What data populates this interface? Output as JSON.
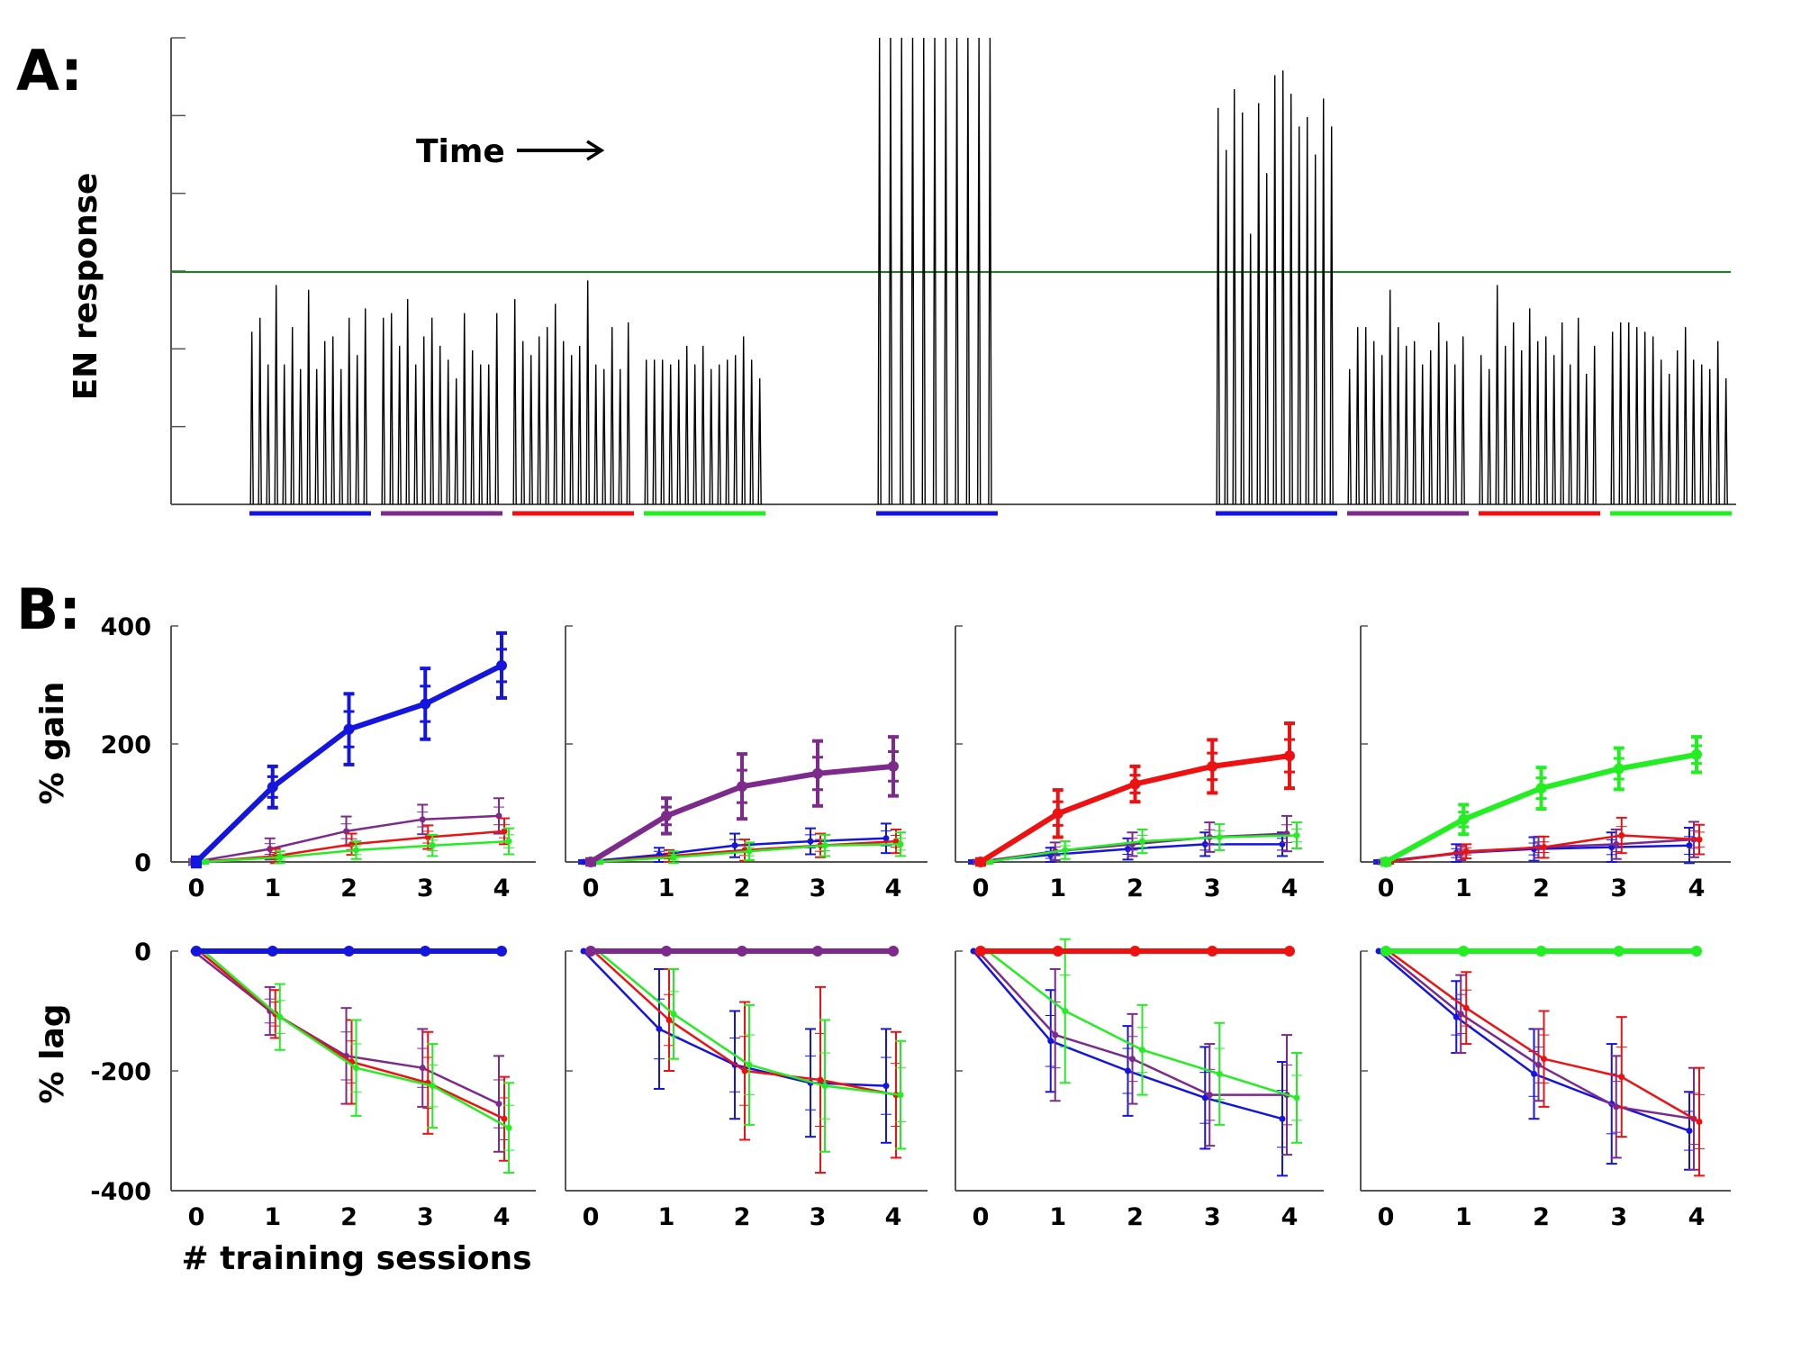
{
  "panel_a_label": "A:",
  "panel_b_label": "B:",
  "panel_a_ylabel": "EN response",
  "time_label": "Time",
  "gain_ylabel": "% gain",
  "lag_ylabel": "% lag",
  "xlabel": "# training sessions",
  "colors": {
    "blue": "#1515e0",
    "purple": "#7d2a8c",
    "red": "#ee1111",
    "green": "#22ee22",
    "threshold": "#118811",
    "axis": "#555555",
    "trace": "#000000"
  },
  "chart_data": [
    {
      "type": "line",
      "panel": "A",
      "ylabel": "EN response",
      "annotation": "Time",
      "threshold_line": true,
      "segments": [
        {
          "group": 1,
          "color": "blue",
          "peaks": [
            0.37,
            0.4,
            0.3,
            0.47,
            0.3,
            0.38,
            0.29,
            0.46,
            0.29,
            0.35,
            0.36,
            0.29,
            0.4,
            0.32,
            0.42
          ]
        },
        {
          "group": 1,
          "color": "purple",
          "peaks": [
            0.4,
            0.41,
            0.34,
            0.44,
            0.3,
            0.36,
            0.4,
            0.34,
            0.31,
            0.27,
            0.41,
            0.33,
            0.3,
            0.3,
            0.41
          ]
        },
        {
          "group": 1,
          "color": "red",
          "peaks": [
            0.44,
            0.35,
            0.32,
            0.36,
            0.38,
            0.43,
            0.35,
            0.32,
            0.34,
            0.48,
            0.3,
            0.29,
            0.38,
            0.29,
            0.39
          ]
        },
        {
          "group": 1,
          "color": "green",
          "peaks": [
            0.31,
            0.31,
            0.31,
            0.3,
            0.31,
            0.34,
            0.3,
            0.34,
            0.29,
            0.3,
            0.31,
            0.32,
            0.36,
            0.31,
            0.27
          ]
        },
        {
          "group": 2,
          "color": "blue",
          "peaks": [
            1.0,
            1.0,
            1.0,
            1.0,
            1.0,
            1.0,
            1.0,
            1.0,
            1.0,
            1.0,
            1.0
          ]
        },
        {
          "group": 3,
          "color": "blue",
          "peaks": [
            0.85,
            0.76,
            0.89,
            0.84,
            0.58,
            0.86,
            0.71,
            0.92,
            0.93,
            0.88,
            0.81,
            0.83,
            0.75,
            0.87,
            0.81
          ]
        },
        {
          "group": 3,
          "color": "purple",
          "peaks": [
            0.29,
            0.38,
            0.38,
            0.35,
            0.32,
            0.46,
            0.38,
            0.34,
            0.35,
            0.3,
            0.33,
            0.39,
            0.35,
            0.3,
            0.36
          ]
        },
        {
          "group": 3,
          "color": "red",
          "peaks": [
            0.32,
            0.29,
            0.47,
            0.34,
            0.39,
            0.33,
            0.42,
            0.35,
            0.36,
            0.32,
            0.39,
            0.3,
            0.4,
            0.28,
            0.34
          ]
        },
        {
          "group": 3,
          "color": "green",
          "peaks": [
            0.37,
            0.39,
            0.39,
            0.38,
            0.37,
            0.36,
            0.31,
            0.28,
            0.33,
            0.38,
            0.31,
            0.3,
            0.29,
            0.35,
            0.27
          ]
        }
      ]
    },
    {
      "type": "line",
      "panel": "B",
      "metric": "gain",
      "trained": "blue",
      "x": [
        0,
        1,
        2,
        3,
        4
      ],
      "ylim": [
        0,
        400
      ],
      "yticks": [
        0,
        200,
        400
      ],
      "series": [
        {
          "color": "blue",
          "trained": true,
          "values": [
            0,
            127,
            225,
            268,
            333
          ],
          "errors": [
            8,
            35,
            60,
            60,
            55
          ]
        },
        {
          "color": "purple",
          "values": [
            0,
            22,
            52,
            72,
            78
          ],
          "errors": [
            5,
            18,
            25,
            25,
            30
          ]
        },
        {
          "color": "red",
          "values": [
            0,
            10,
            30,
            42,
            52
          ],
          "errors": [
            3,
            12,
            18,
            20,
            22
          ]
        },
        {
          "color": "green",
          "values": [
            0,
            8,
            20,
            28,
            35
          ],
          "errors": [
            3,
            10,
            15,
            18,
            22
          ]
        }
      ]
    },
    {
      "type": "line",
      "panel": "B",
      "metric": "gain",
      "trained": "purple",
      "x": [
        0,
        1,
        2,
        3,
        4
      ],
      "ylim": [
        0,
        400
      ],
      "yticks": [
        0,
        200,
        400
      ],
      "series": [
        {
          "color": "purple",
          "trained": true,
          "values": [
            0,
            78,
            128,
            150,
            162
          ],
          "errors": [
            5,
            30,
            55,
            55,
            50
          ]
        },
        {
          "color": "blue",
          "values": [
            0,
            12,
            28,
            35,
            40
          ],
          "errors": [
            3,
            12,
            20,
            22,
            25
          ]
        },
        {
          "color": "red",
          "values": [
            0,
            10,
            20,
            28,
            35
          ],
          "errors": [
            3,
            10,
            18,
            20,
            20
          ]
        },
        {
          "color": "green",
          "values": [
            0,
            8,
            18,
            28,
            30
          ],
          "errors": [
            3,
            10,
            15,
            18,
            20
          ]
        }
      ]
    },
    {
      "type": "line",
      "panel": "B",
      "metric": "gain",
      "trained": "red",
      "x": [
        0,
        1,
        2,
        3,
        4
      ],
      "ylim": [
        0,
        400
      ],
      "yticks": [
        0,
        200,
        400
      ],
      "series": [
        {
          "color": "red",
          "trained": true,
          "values": [
            0,
            82,
            132,
            162,
            180
          ],
          "errors": [
            5,
            40,
            30,
            45,
            55
          ]
        },
        {
          "color": "blue",
          "values": [
            0,
            12,
            22,
            30,
            30
          ],
          "errors": [
            3,
            12,
            18,
            20,
            20
          ]
        },
        {
          "color": "purple",
          "values": [
            0,
            18,
            30,
            42,
            48
          ],
          "errors": [
            3,
            15,
            20,
            25,
            30
          ]
        },
        {
          "color": "green",
          "values": [
            0,
            20,
            35,
            42,
            45
          ],
          "errors": [
            3,
            15,
            20,
            22,
            22
          ]
        }
      ]
    },
    {
      "type": "line",
      "panel": "B",
      "metric": "gain",
      "trained": "green",
      "x": [
        0,
        1,
        2,
        3,
        4
      ],
      "ylim": [
        0,
        400
      ],
      "yticks": [
        0,
        200,
        400
      ],
      "series": [
        {
          "color": "green",
          "trained": true,
          "values": [
            0,
            72,
            125,
            158,
            182
          ],
          "errors": [
            5,
            25,
            35,
            35,
            30
          ]
        },
        {
          "color": "blue",
          "values": [
            0,
            15,
            22,
            25,
            28
          ],
          "errors": [
            3,
            15,
            20,
            25,
            30
          ]
        },
        {
          "color": "purple",
          "values": [
            0,
            15,
            25,
            30,
            38
          ],
          "errors": [
            3,
            12,
            18,
            25,
            30
          ]
        },
        {
          "color": "red",
          "values": [
            0,
            18,
            25,
            45,
            38
          ],
          "errors": [
            3,
            12,
            18,
            30,
            25
          ]
        }
      ]
    },
    {
      "type": "line",
      "panel": "B",
      "metric": "lag",
      "trained": "blue",
      "x": [
        0,
        1,
        2,
        3,
        4
      ],
      "ylim": [
        -400,
        0
      ],
      "yticks": [
        -400,
        -200,
        0
      ],
      "series": [
        {
          "color": "blue",
          "trained": true,
          "values": [
            0,
            0,
            0,
            0,
            0
          ],
          "errors": [
            0,
            0,
            0,
            0,
            0
          ]
        },
        {
          "color": "purple",
          "values": [
            0,
            -100,
            -175,
            -195,
            -255
          ],
          "errors": [
            0,
            40,
            80,
            65,
            80
          ]
        },
        {
          "color": "red",
          "values": [
            0,
            -105,
            -185,
            -220,
            -280
          ],
          "errors": [
            0,
            40,
            70,
            85,
            70
          ]
        },
        {
          "color": "green",
          "values": [
            0,
            -110,
            -195,
            -225,
            -295
          ],
          "errors": [
            0,
            55,
            80,
            70,
            75
          ]
        }
      ]
    },
    {
      "type": "line",
      "panel": "B",
      "metric": "lag",
      "trained": "purple",
      "x": [
        0,
        1,
        2,
        3,
        4
      ],
      "ylim": [
        -400,
        0
      ],
      "yticks": [
        -400,
        -200,
        0
      ],
      "series": [
        {
          "color": "purple",
          "trained": true,
          "values": [
            0,
            0,
            0,
            0,
            0
          ],
          "errors": [
            0,
            0,
            0,
            0,
            0
          ]
        },
        {
          "color": "blue",
          "values": [
            0,
            -130,
            -190,
            -220,
            -225
          ],
          "errors": [
            0,
            100,
            90,
            90,
            95
          ]
        },
        {
          "color": "red",
          "values": [
            0,
            -115,
            -200,
            -215,
            -240
          ],
          "errors": [
            0,
            85,
            115,
            155,
            105
          ]
        },
        {
          "color": "green",
          "values": [
            0,
            -105,
            -190,
            -225,
            -240
          ],
          "errors": [
            0,
            75,
            100,
            110,
            90
          ]
        }
      ]
    },
    {
      "type": "line",
      "panel": "B",
      "metric": "lag",
      "trained": "red",
      "x": [
        0,
        1,
        2,
        3,
        4
      ],
      "ylim": [
        -400,
        0
      ],
      "yticks": [
        -400,
        -200,
        0
      ],
      "series": [
        {
          "color": "red",
          "trained": true,
          "values": [
            0,
            0,
            0,
            0,
            0
          ],
          "errors": [
            0,
            0,
            0,
            0,
            0
          ]
        },
        {
          "color": "blue",
          "values": [
            0,
            -150,
            -200,
            -245,
            -280
          ],
          "errors": [
            0,
            85,
            75,
            85,
            95
          ]
        },
        {
          "color": "purple",
          "values": [
            0,
            -140,
            -180,
            -240,
            -240
          ],
          "errors": [
            0,
            110,
            75,
            85,
            100
          ]
        },
        {
          "color": "green",
          "values": [
            0,
            -100,
            -165,
            -205,
            -245
          ],
          "errors": [
            0,
            120,
            75,
            85,
            75
          ]
        }
      ]
    },
    {
      "type": "line",
      "panel": "B",
      "metric": "lag",
      "trained": "green",
      "x": [
        0,
        1,
        2,
        3,
        4
      ],
      "ylim": [
        -400,
        0
      ],
      "yticks": [
        -400,
        -200,
        0
      ],
      "series": [
        {
          "color": "green",
          "trained": true,
          "values": [
            0,
            0,
            0,
            0,
            0
          ],
          "errors": [
            0,
            0,
            0,
            0,
            0
          ]
        },
        {
          "color": "blue",
          "values": [
            0,
            -110,
            -205,
            -255,
            -300
          ],
          "errors": [
            0,
            60,
            75,
            100,
            65
          ]
        },
        {
          "color": "purple",
          "values": [
            0,
            -105,
            -190,
            -260,
            -280
          ],
          "errors": [
            0,
            65,
            60,
            85,
            85
          ]
        },
        {
          "color": "red",
          "values": [
            0,
            -95,
            -180,
            -210,
            -285
          ],
          "errors": [
            0,
            60,
            80,
            100,
            90
          ]
        }
      ]
    }
  ]
}
